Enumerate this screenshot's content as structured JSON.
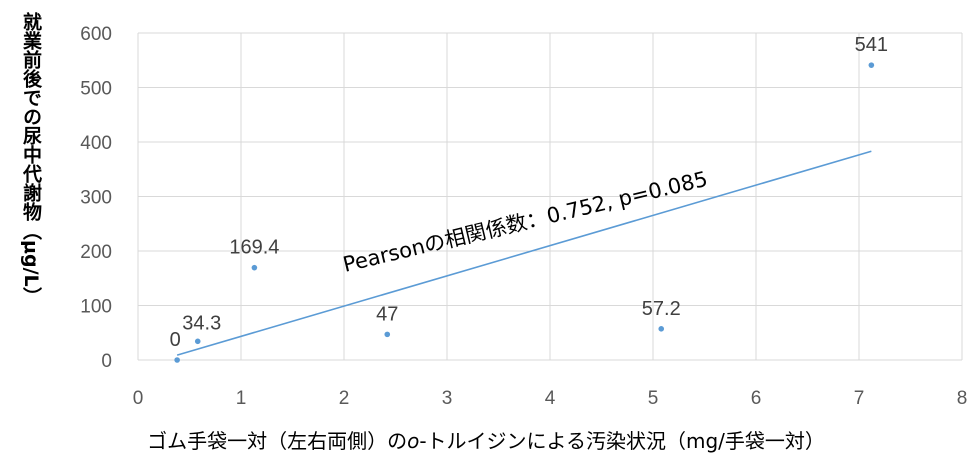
{
  "chart_data": {
    "type": "scatter",
    "ylabel": "就業前後での尿中代謝物（μg/L）",
    "xlabel_parts": [
      "ゴム手袋一対（左右両側）の",
      "o",
      "-トルイジンによる汚染状況（mg/手袋一対）"
    ],
    "xlim": [
      0,
      8
    ],
    "ylim": [
      0,
      600
    ],
    "xticks": [
      0,
      1,
      2,
      3,
      4,
      5,
      6,
      7,
      8
    ],
    "yticks": [
      0,
      100,
      200,
      300,
      400,
      500,
      600
    ],
    "grid": true,
    "points": [
      {
        "x": 0.38,
        "y": 0,
        "label": "0"
      },
      {
        "x": 0.58,
        "y": 34.3,
        "label": "34.3"
      },
      {
        "x": 1.13,
        "y": 169.4,
        "label": "169.4"
      },
      {
        "x": 2.42,
        "y": 47,
        "label": "47"
      },
      {
        "x": 5.08,
        "y": 57.2,
        "label": "57.2"
      },
      {
        "x": 7.12,
        "y": 541,
        "label": "541"
      }
    ],
    "trendline": {
      "x": [
        0.38,
        7.12
      ],
      "y": [
        9,
        383
      ]
    },
    "annotation": "Pearsonの相関係数：0.752, p=0.085",
    "colors": {
      "points": "#5b9bd5",
      "trendline": "#5b9bd5",
      "grid": "#d9d9d9"
    }
  }
}
